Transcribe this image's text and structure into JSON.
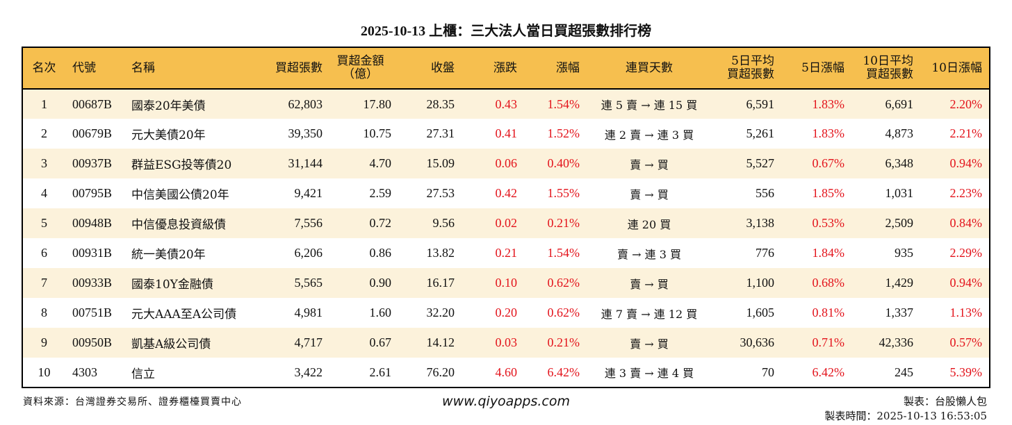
{
  "title": "2025-10-13 上櫃：三大法人當日買超張數排行榜",
  "colors": {
    "header_bg": "#F6BF4F",
    "odd_row_bg": "#FCF2DB",
    "up": "#E3131B"
  },
  "headers": {
    "rank": "名次",
    "code": "代號",
    "name": "名稱",
    "net_buy": "買超張數",
    "amount_line1": "買超金額",
    "amount_line2": "（億）",
    "close": "收盤",
    "change": "漲跌",
    "pct": "漲幅",
    "streak": "連買天數",
    "avg5_line1": "5日平均",
    "avg5_line2": "買超張數",
    "pct5": "5日漲幅",
    "avg10_line1": "10日平均",
    "avg10_line2": "買超張數",
    "pct10": "10日漲幅"
  },
  "rows": [
    {
      "rank": "1",
      "code": "00687B",
      "name": "國泰20年美債",
      "net_buy": "62,803",
      "amount": "17.80",
      "close": "28.35",
      "change": "0.43",
      "pct": "1.54%",
      "streak": "連 5 賣 → 連 15 買",
      "avg5": "6,591",
      "pct5": "1.83%",
      "avg10": "6,691",
      "pct10": "2.20%"
    },
    {
      "rank": "2",
      "code": "00679B",
      "name": "元大美債20年",
      "net_buy": "39,350",
      "amount": "10.75",
      "close": "27.31",
      "change": "0.41",
      "pct": "1.52%",
      "streak": "連 2 賣 → 連 3 買",
      "avg5": "5,261",
      "pct5": "1.83%",
      "avg10": "4,873",
      "pct10": "2.21%"
    },
    {
      "rank": "3",
      "code": "00937B",
      "name": "群益ESG投等債20",
      "net_buy": "31,144",
      "amount": "4.70",
      "close": "15.09",
      "change": "0.06",
      "pct": "0.40%",
      "streak": "賣 → 買",
      "avg5": "5,527",
      "pct5": "0.67%",
      "avg10": "6,348",
      "pct10": "0.94%"
    },
    {
      "rank": "4",
      "code": "00795B",
      "name": "中信美國公債20年",
      "net_buy": "9,421",
      "amount": "2.59",
      "close": "27.53",
      "change": "0.42",
      "pct": "1.55%",
      "streak": "賣 → 買",
      "avg5": "556",
      "pct5": "1.85%",
      "avg10": "1,031",
      "pct10": "2.23%"
    },
    {
      "rank": "5",
      "code": "00948B",
      "name": "中信優息投資級債",
      "net_buy": "7,556",
      "amount": "0.72",
      "close": "9.56",
      "change": "0.02",
      "pct": "0.21%",
      "streak": "連 20 買",
      "avg5": "3,138",
      "pct5": "0.53%",
      "avg10": "2,509",
      "pct10": "0.84%"
    },
    {
      "rank": "6",
      "code": "00931B",
      "name": "統一美債20年",
      "net_buy": "6,206",
      "amount": "0.86",
      "close": "13.82",
      "change": "0.21",
      "pct": "1.54%",
      "streak": "賣 → 連 3 買",
      "avg5": "776",
      "pct5": "1.84%",
      "avg10": "935",
      "pct10": "2.29%"
    },
    {
      "rank": "7",
      "code": "00933B",
      "name": "國泰10Y金融債",
      "net_buy": "5,565",
      "amount": "0.90",
      "close": "16.17",
      "change": "0.10",
      "pct": "0.62%",
      "streak": "賣 → 買",
      "avg5": "1,100",
      "pct5": "0.68%",
      "avg10": "1,429",
      "pct10": "0.94%"
    },
    {
      "rank": "8",
      "code": "00751B",
      "name": "元大AAA至A公司債",
      "net_buy": "4,981",
      "amount": "1.60",
      "close": "32.20",
      "change": "0.20",
      "pct": "0.62%",
      "streak": "連 7 賣 → 連 12 買",
      "avg5": "1,605",
      "pct5": "0.81%",
      "avg10": "1,337",
      "pct10": "1.13%"
    },
    {
      "rank": "9",
      "code": "00950B",
      "name": "凱基A級公司債",
      "net_buy": "4,717",
      "amount": "0.67",
      "close": "14.12",
      "change": "0.03",
      "pct": "0.21%",
      "streak": "賣 → 買",
      "avg5": "30,636",
      "pct5": "0.71%",
      "avg10": "42,336",
      "pct10": "0.57%"
    },
    {
      "rank": "10",
      "code": "4303",
      "name": "信立",
      "net_buy": "3,422",
      "amount": "2.61",
      "close": "76.20",
      "change": "4.60",
      "pct": "6.42%",
      "streak": "連 3 賣 → 連 4 買",
      "avg5": "70",
      "pct5": "6.42%",
      "avg10": "245",
      "pct10": "5.39%"
    }
  ],
  "footer": {
    "source": "資料來源：台灣證券交易所、證券櫃檯買賣中心",
    "url": "www.qiyoapps.com",
    "made_by": "製表：台股懶人包",
    "made_time": "製表時間：2025-10-13 16:53:05"
  }
}
